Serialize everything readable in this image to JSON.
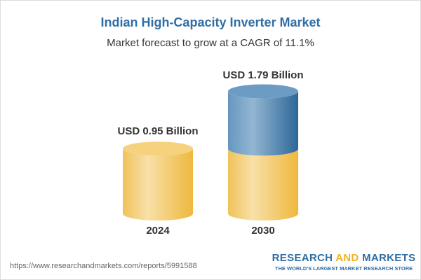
{
  "title": "Indian High-Capacity Inverter Market",
  "subtitle": "Market forecast to grow at a CAGR of 11.1%",
  "chart_data": {
    "type": "bar",
    "categories": [
      "2024",
      "2030"
    ],
    "values": [
      0.95,
      1.79
    ],
    "data_labels": [
      "USD 0.95 Billion",
      "USD 1.79 Billion"
    ],
    "unit": "USD Billion",
    "colors": {
      "base": "#f2c45c",
      "growth": "#4f86b5"
    }
  },
  "footer": {
    "url": "https://www.researchandmarkets.com/reports/5991588",
    "logo_part1": "RESEARCH ",
    "logo_part2": "AND",
    "logo_part3": " MARKETS",
    "tagline": "THE WORLD'S LARGEST MARKET RESEARCH STORE"
  }
}
